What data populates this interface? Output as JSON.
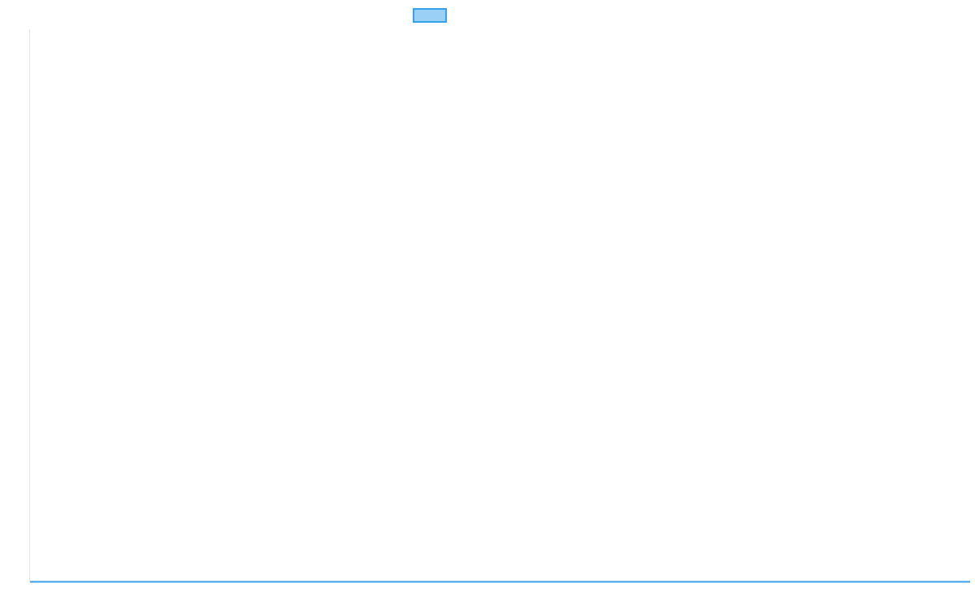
{
  "chart_data": {
    "type": "line",
    "title": "",
    "xlabel": "",
    "ylabel": "",
    "legend": "top",
    "grid": false,
    "series": [
      {
        "name": "",
        "color": "#36a2eb",
        "fill": "rgba(54,162,235,0.5)",
        "values": [
          0,
          0
        ]
      }
    ]
  }
}
